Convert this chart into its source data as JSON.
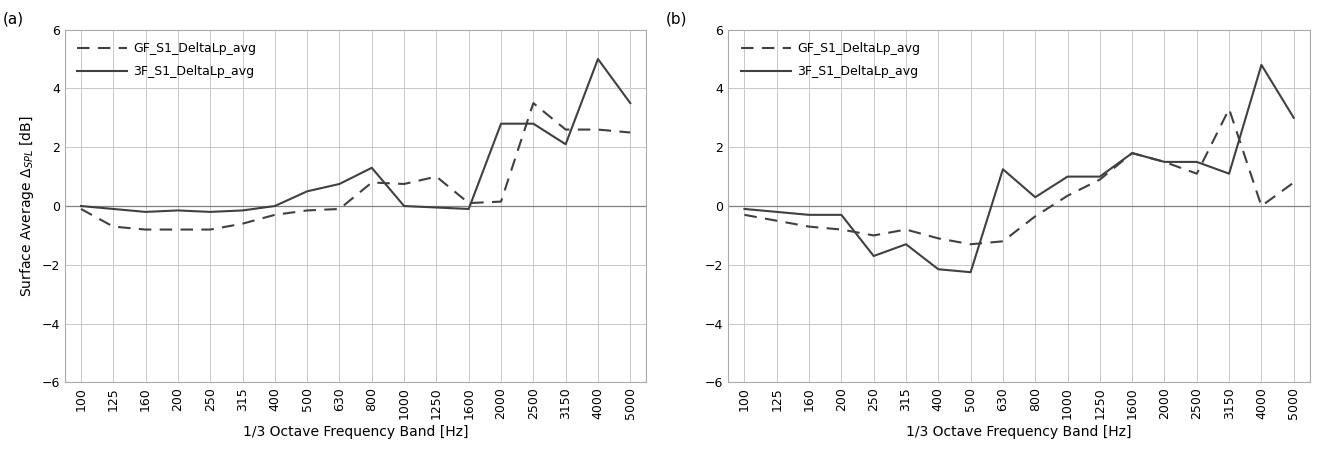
{
  "freq_labels": [
    "100",
    "125",
    "160",
    "200",
    "250",
    "315",
    "400",
    "500",
    "630",
    "800",
    "1000",
    "1250",
    "1600",
    "2000",
    "2500",
    "3150",
    "4000",
    "5000"
  ],
  "panel_a": {
    "gf_dashed": [
      -0.1,
      -0.7,
      -0.8,
      -0.8,
      -0.8,
      -0.6,
      -0.3,
      -0.15,
      -0.1,
      0.8,
      0.75,
      1.0,
      0.1,
      0.15,
      3.5,
      2.6,
      2.6,
      2.5
    ],
    "sf_solid": [
      0.0,
      -0.1,
      -0.2,
      -0.15,
      -0.2,
      -0.15,
      0.0,
      0.5,
      0.75,
      1.3,
      0.0,
      -0.05,
      -0.1,
      2.8,
      2.8,
      2.1,
      5.0,
      3.5
    ]
  },
  "panel_b": {
    "gf_dashed": [
      -0.3,
      -0.5,
      -0.7,
      -0.8,
      -1.0,
      -0.8,
      -1.1,
      -1.3,
      -1.2,
      -0.35,
      0.35,
      0.9,
      1.8,
      1.5,
      1.1,
      3.3,
      0.0,
      0.8
    ],
    "sf_solid": [
      -0.1,
      -0.2,
      -0.3,
      -0.3,
      -1.7,
      -1.3,
      -2.15,
      -2.25,
      1.25,
      0.3,
      1.0,
      1.0,
      1.8,
      1.5,
      1.5,
      1.1,
      4.8,
      3.0
    ]
  },
  "legend_dashed_label": "GF_S1_DeltaLp_avg",
  "legend_solid_label": "3F_S1_DeltaLp_avg",
  "ylabel": "Surface Average $\\Delta_{SPL}$ [dB]",
  "xlabel": "1/3 Octave Frequency Band [Hz]",
  "ylim": [
    -6,
    6
  ],
  "yticks": [
    -6,
    -4,
    -2,
    0,
    2,
    4,
    6
  ],
  "line_color": "#404040",
  "grid_color": "#c8c8c8",
  "zero_line_color": "#808080",
  "panel_labels": [
    "(a)",
    "(b)"
  ],
  "legend_fontsize": 9,
  "tick_fontsize": 9,
  "axis_fontsize": 10,
  "panel_label_fontsize": 11,
  "linewidth": 1.5,
  "dash_pattern": [
    6,
    4
  ]
}
